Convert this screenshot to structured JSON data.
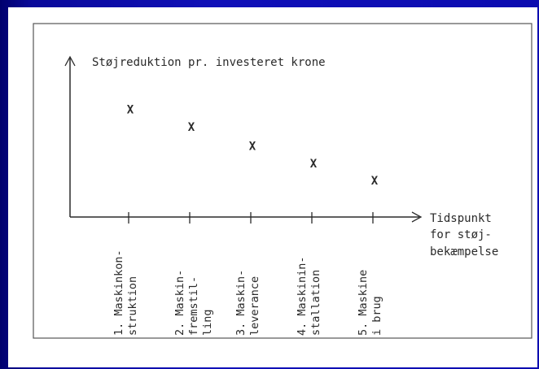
{
  "chart_data": {
    "type": "scatter",
    "ylabel": "Støjreduktion pr. investeret krone",
    "xlabel_lines": [
      "Tidspunkt",
      "for støj-",
      "bekæmpelse"
    ],
    "marker": "X",
    "categories": [
      {
        "number": "1.",
        "lines": [
          "Maskinkon-",
          "struktion"
        ]
      },
      {
        "number": "2.",
        "lines": [
          "Maskin-",
          "fremstil-",
          "ling"
        ]
      },
      {
        "number": "3.",
        "lines": [
          "Maskin-",
          "leverance"
        ]
      },
      {
        "number": "4.",
        "lines": [
          "Maskinin-",
          "stallation"
        ]
      },
      {
        "number": "5.",
        "lines": [
          "Maskine",
          "i brug"
        ]
      }
    ],
    "values": [
      5,
      4.2,
      3.3,
      2.5,
      1.7
    ],
    "ylim": [
      0,
      7.4
    ],
    "grid": false,
    "y_ticks": false
  },
  "colors": {
    "background": "#0c0cb0",
    "slide": "#ffffff",
    "ink": "#2a2a2a"
  }
}
